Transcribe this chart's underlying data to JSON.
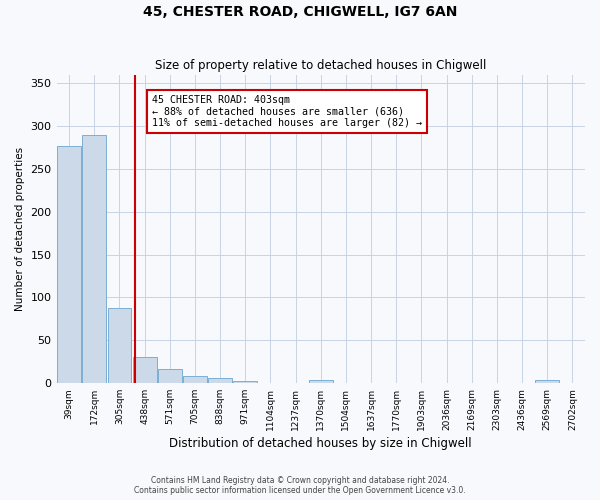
{
  "title": "45, CHESTER ROAD, CHIGWELL, IG7 6AN",
  "subtitle": "Size of property relative to detached houses in Chigwell",
  "xlabel": "Distribution of detached houses by size in Chigwell",
  "ylabel": "Number of detached properties",
  "footer_line1": "Contains HM Land Registry data © Crown copyright and database right 2024.",
  "footer_line2": "Contains public sector information licensed under the Open Government Licence v3.0.",
  "annotation_line1": "45 CHESTER ROAD: 403sqm",
  "annotation_line2": "← 88% of detached houses are smaller (636)",
  "annotation_line3": "11% of semi-detached houses are larger (82) →",
  "property_bin_index": 2.6,
  "bar_color": "#ccd9e8",
  "bar_edge_color": "#7aafd4",
  "red_line_color": "#cc0000",
  "annotation_box_color": "#cc0000",
  "background_color": "#f7f9fc",
  "grid_color": "#c8d4e4",
  "bin_labels": [
    "39sqm",
    "172sqm",
    "305sqm",
    "438sqm",
    "571sqm",
    "705sqm",
    "838sqm",
    "971sqm",
    "1104sqm",
    "1237sqm",
    "1370sqm",
    "1504sqm",
    "1637sqm",
    "1770sqm",
    "1903sqm",
    "2036sqm",
    "2169sqm",
    "2303sqm",
    "2436sqm",
    "2569sqm",
    "2702sqm"
  ],
  "counts": [
    277,
    290,
    88,
    30,
    17,
    8,
    6,
    2,
    0,
    0,
    4,
    0,
    0,
    0,
    0,
    0,
    0,
    0,
    0,
    3,
    0
  ],
  "ylim": [
    0,
    360
  ],
  "yticks": [
    0,
    50,
    100,
    150,
    200,
    250,
    300,
    350
  ]
}
